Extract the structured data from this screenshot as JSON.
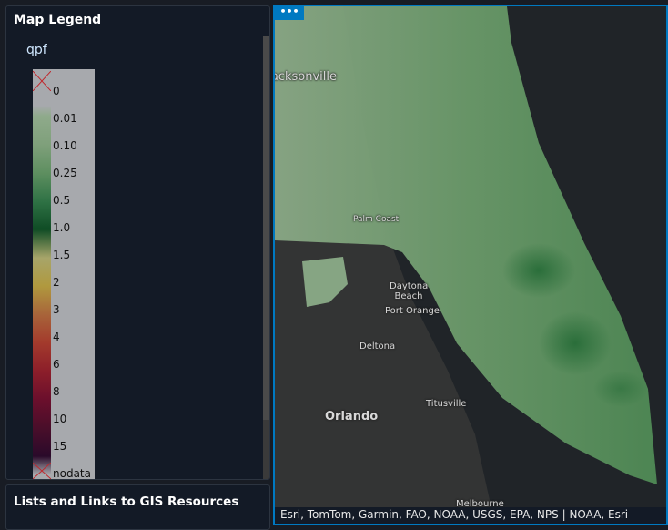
{
  "legend": {
    "title": "Map Legend",
    "layer": "qpf",
    "labels": [
      "0",
      "0.01",
      "0.10",
      "0.25",
      "0.5",
      "1.0",
      "1.5",
      "2",
      "3",
      "4",
      "6",
      "8",
      "10",
      "15",
      "nodata"
    ],
    "colors": [
      "#8faa8b",
      "#7fa07b",
      "#5e8f60",
      "#2f7245",
      "#0f4c25",
      "#a7a56a",
      "#b0993e",
      "#a8643a",
      "#a33a2c",
      "#8c1e2a",
      "#6b0f2c",
      "#4a0e2a",
      "#2a0a2a"
    ]
  },
  "lists": {
    "title": "Lists and Links to GIS Resources"
  },
  "map": {
    "menu_label": "•••",
    "cities": {
      "jacksonville": "Jacksonville",
      "palm_coast": "Palm Coast",
      "daytona": "Daytona Beach",
      "port_orange": "Port Orange",
      "deltona": "Deltona",
      "orlando": "Orlando",
      "titusville": "Titusville",
      "melbourne": "Melbourne"
    },
    "attribution": "Esri, TomTom, Garmin, FAO, NOAA, USGS, EPA, NPS | NOAA, Esri"
  }
}
